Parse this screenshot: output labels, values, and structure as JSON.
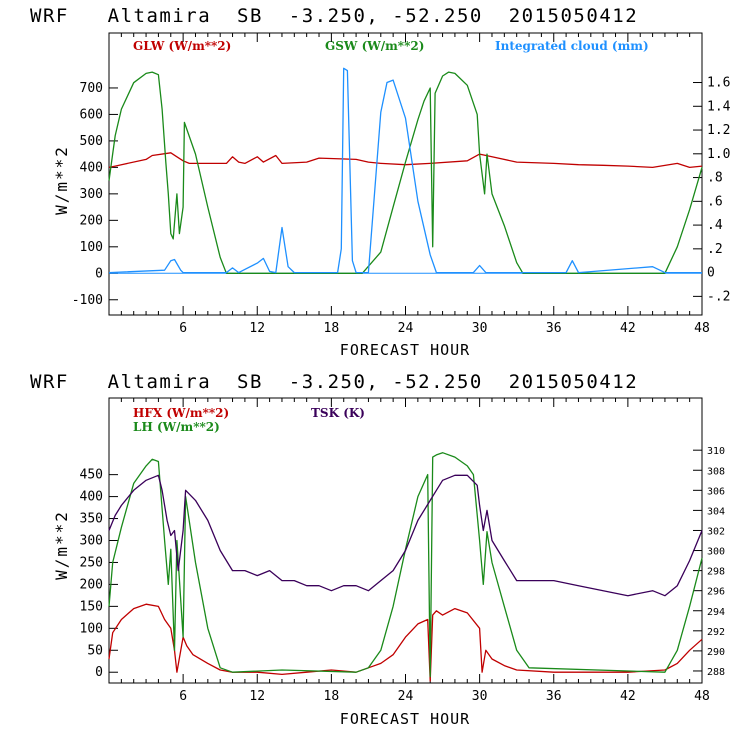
{
  "chart_data": [
    {
      "type": "line",
      "title": "WRF   Altamira  SB  -3.250, -52.250  2015050412",
      "xlabel": "FORECAST HOUR",
      "ylabel": "W/m**2",
      "xlim": [
        0,
        48
      ],
      "ylim": [
        -150,
        900
      ],
      "xticks": [
        6,
        12,
        18,
        24,
        30,
        36,
        42,
        48
      ],
      "yticks": [
        -100,
        0,
        100,
        200,
        300,
        400,
        500,
        600,
        700
      ],
      "y2lim": [
        -0.34,
        2.0
      ],
      "y2ticks": [
        -0.2,
        0,
        0.2,
        0.4,
        0.6,
        0.8,
        1.0,
        1.2,
        1.4,
        1.6
      ],
      "y2ticklabels": [
        "-.2",
        "0",
        ".2",
        ".4",
        ".6",
        ".8",
        "1.0",
        "1.2",
        "1.4",
        "1.6"
      ],
      "series": [
        {
          "name": "GLW (W/m**2)",
          "color": "#c00000",
          "axis": "left",
          "x": [
            0,
            0.5,
            1,
            3,
            3.5,
            5,
            5.5,
            6,
            6.5,
            9.5,
            10,
            10.5,
            11,
            12,
            12.5,
            13.5,
            14,
            16,
            17,
            20,
            21,
            22,
            24,
            26,
            29,
            30,
            31,
            33,
            36,
            38,
            40,
            42,
            44,
            46,
            47,
            48
          ],
          "y": [
            400,
            405,
            410,
            430,
            445,
            455,
            440,
            425,
            415,
            415,
            440,
            420,
            415,
            440,
            420,
            445,
            415,
            420,
            435,
            430,
            420,
            415,
            410,
            415,
            425,
            450,
            440,
            420,
            415,
            410,
            408,
            405,
            400,
            415,
            400,
            405
          ]
        },
        {
          "name": "GSW (W/m**2)",
          "color": "#1a8a1a",
          "axis": "left",
          "x": [
            0,
            0.5,
            1,
            2,
            3,
            3.5,
            4,
            4.3,
            4.6,
            4.8,
            5,
            5.2,
            5.5,
            5.7,
            6,
            6.1,
            7,
            8,
            9,
            9.5,
            20.5,
            22,
            23,
            24,
            25,
            25.5,
            26,
            26.2,
            26.4,
            27,
            27.5,
            28,
            29,
            29.8,
            30,
            30.4,
            30.6,
            31,
            32,
            33,
            33.5,
            45,
            46,
            47,
            48
          ],
          "y": [
            350,
            520,
            620,
            720,
            755,
            760,
            750,
            620,
            420,
            300,
            150,
            130,
            300,
            150,
            250,
            570,
            450,
            250,
            60,
            0,
            0,
            80,
            250,
            420,
            580,
            650,
            700,
            100,
            680,
            745,
            760,
            755,
            710,
            600,
            450,
            300,
            450,
            300,
            180,
            40,
            0,
            0,
            100,
            240,
            400
          ]
        },
        {
          "name": "Integrated cloud (mm)",
          "color": "#1e90ff",
          "axis": "right",
          "x": [
            0,
            4.5,
            5,
            5.3,
            5.8,
            6,
            9.5,
            10,
            10.5,
            12,
            12.5,
            13,
            13.5,
            14,
            14.5,
            15,
            18.5,
            18.8,
            19,
            19.3,
            19.7,
            20,
            21,
            22,
            22.5,
            23,
            24,
            25,
            26,
            26.5,
            29.5,
            30,
            30.5,
            37,
            37.5,
            38,
            44,
            45,
            48
          ],
          "y": [
            0,
            0.02,
            0.1,
            0.11,
            0.02,
            0,
            0,
            0.04,
            0,
            0.08,
            0.12,
            0.01,
            0,
            0.38,
            0.05,
            0,
            0,
            0.2,
            1.72,
            1.7,
            0.1,
            0,
            0,
            1.35,
            1.6,
            1.62,
            1.3,
            0.6,
            0.15,
            0,
            0,
            0.06,
            0,
            0,
            0.1,
            0,
            0.05,
            0,
            0
          ]
        }
      ],
      "zero_line_color": "#1e90ff"
    },
    {
      "type": "line",
      "title": "WRF   Altamira  SB  -3.250, -52.250  2015050412",
      "xlabel": "FORECAST HOUR",
      "ylabel": "W/m**2",
      "xlim": [
        0,
        48
      ],
      "ylim": [
        -20,
        620
      ],
      "xticks": [
        6,
        12,
        18,
        24,
        30,
        36,
        42,
        48
      ],
      "yticks": [
        0,
        50,
        100,
        150,
        200,
        250,
        300,
        350,
        400,
        450
      ],
      "y2lim": [
        287,
        315
      ],
      "y2ticks": [
        288,
        290,
        292,
        294,
        296,
        298,
        300,
        302,
        304,
        306,
        308,
        310
      ],
      "series": [
        {
          "name": "HFX (W/m**2)",
          "color": "#c00000",
          "axis": "left",
          "x": [
            0,
            0.3,
            1,
            2,
            3,
            4,
            4.5,
            5,
            5.3,
            5.5,
            6,
            6.3,
            6.8,
            8,
            9,
            10,
            12,
            14,
            16,
            18,
            20,
            21,
            22,
            23,
            24,
            25,
            25.8,
            26,
            26.2,
            26.5,
            27,
            28,
            29,
            30,
            30.2,
            30.5,
            31,
            32,
            33,
            36,
            39,
            42,
            45,
            46,
            47,
            48
          ],
          "y": [
            30,
            90,
            120,
            145,
            155,
            150,
            120,
            100,
            50,
            0,
            80,
            60,
            40,
            20,
            5,
            0,
            0,
            -5,
            0,
            5,
            0,
            10,
            20,
            40,
            80,
            110,
            120,
            -20,
            130,
            140,
            130,
            145,
            135,
            100,
            0,
            50,
            30,
            15,
            5,
            0,
            0,
            0,
            5,
            20,
            50,
            75
          ]
        },
        {
          "name": "LH (W/m**2)",
          "color": "#1a8a1a",
          "axis": "left",
          "x": [
            0,
            0.3,
            1,
            2,
            3,
            3.5,
            4,
            4.5,
            4.8,
            5,
            5.3,
            5.5,
            6,
            6.2,
            7,
            8,
            9,
            10,
            14,
            20,
            21,
            22,
            23,
            24,
            25,
            25.8,
            26,
            26.2,
            26.5,
            27,
            28,
            29,
            29.5,
            30,
            30.3,
            30.6,
            31,
            32,
            33,
            34,
            45,
            46,
            47,
            48
          ],
          "y": [
            150,
            250,
            330,
            430,
            470,
            485,
            480,
            300,
            200,
            280,
            50,
            300,
            80,
            400,
            250,
            100,
            10,
            0,
            5,
            0,
            10,
            50,
            150,
            280,
            400,
            450,
            -10,
            490,
            495,
            500,
            490,
            470,
            450,
            300,
            200,
            320,
            250,
            150,
            50,
            10,
            0,
            50,
            150,
            260
          ]
        },
        {
          "name": "TSK (K)",
          "color": "#3a005a",
          "axis": "right",
          "x": [
            0,
            0.5,
            1,
            2,
            3,
            4,
            4.3,
            4.7,
            5,
            5.3,
            5.6,
            6,
            6.2,
            7,
            8,
            9,
            10,
            11,
            12,
            13,
            14,
            15,
            16,
            17,
            18,
            19,
            20,
            21,
            22,
            23,
            24,
            25,
            26,
            26.5,
            27,
            28,
            29,
            29.8,
            30,
            30.3,
            30.6,
            31,
            32,
            33,
            34,
            36,
            38,
            40,
            42,
            44,
            45,
            46,
            47,
            48
          ],
          "y": [
            302,
            303.5,
            304.5,
            306,
            307,
            307.5,
            306,
            303,
            301.5,
            302,
            298,
            302,
            306,
            305,
            303,
            300,
            298,
            298,
            297.5,
            298,
            297,
            297,
            296.5,
            296.5,
            296,
            296.5,
            296.5,
            296,
            297,
            298,
            300,
            303,
            305,
            306,
            307,
            307.5,
            307.5,
            306.5,
            304.5,
            302,
            304,
            301,
            299,
            297,
            297,
            297,
            296.5,
            296,
            295.5,
            296,
            295.5,
            296.5,
            299,
            302
          ]
        }
      ]
    }
  ]
}
